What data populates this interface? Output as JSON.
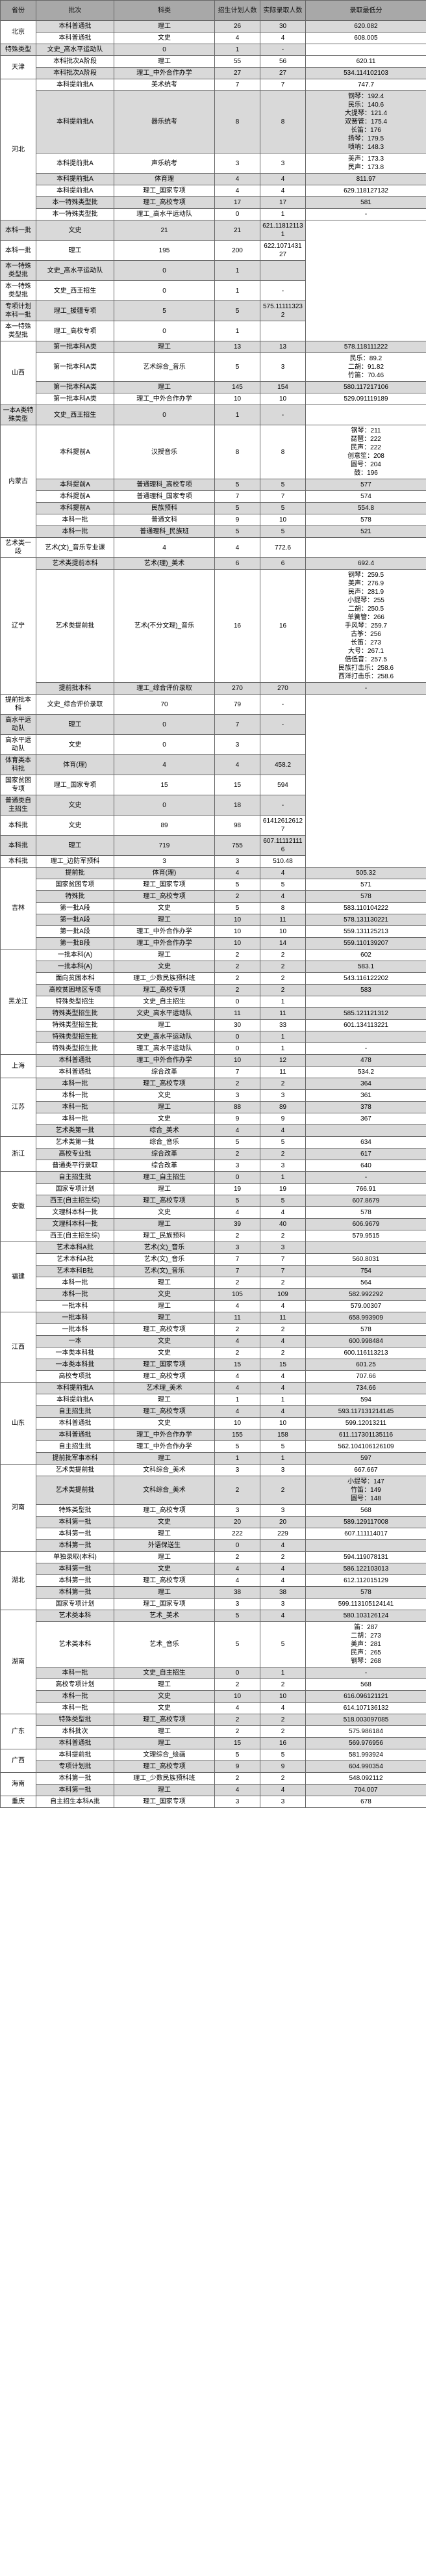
{
  "headers": [
    "省份",
    "批次",
    "科类",
    "招生计划人数",
    "实际录取人数",
    "录取最低分"
  ],
  "rows": [
    {
      "p": "北京",
      "pr": 2,
      "b": "本科普通批",
      "k": "理工",
      "a": "26",
      "c": "30",
      "s": "620.082"
    },
    {
      "b": "本科普通批",
      "k": "文史",
      "a": "4",
      "c": "4",
      "s": "608.005"
    },
    {
      "p": "",
      "b": "特殊类型",
      "k": "文史_高水平运动队",
      "a": "0",
      "c": "1",
      "s": "-"
    },
    {
      "p": "天津",
      "pr": 2,
      "b": "本科批次A阶段",
      "k": "理工",
      "a": "55",
      "c": "56",
      "s": "620.11"
    },
    {
      "b": "本科批次A阶段",
      "k": "理工_中外合作办学",
      "a": "27",
      "c": "27",
      "s": "534.114102103"
    },
    {
      "p": "河北",
      "pr": 7,
      "b": "本科提前批A",
      "k": "美术统考",
      "a": "7",
      "c": "7",
      "s": "747.7"
    },
    {
      "b": "本科提前批A",
      "k": "器乐统考",
      "a": "8",
      "c": "8",
      "s": "钢琴：192.4\n民乐：140.6\n大提琴：121.4\n双簧管：175.4\n长笛：176\n扬琴：179.5\n唢呐：148.3"
    },
    {
      "b": "本科提前批A",
      "k": "声乐统考",
      "a": "3",
      "c": "3",
      "s": "美声：173.3\n民声：173.8"
    },
    {
      "b": "本科提前批A",
      "k": "体育理",
      "a": "4",
      "c": "4",
      "s": "811.97"
    },
    {
      "b": "本科提前批A",
      "k": "理工_国家专项",
      "a": "4",
      "c": "4",
      "s": "629.118127132"
    },
    {
      "b": "本一特殊类型批",
      "k": "理工_高校专项",
      "a": "17",
      "c": "17",
      "s": "581"
    },
    {
      "b": "本一特殊类型批",
      "k": "理工_高水平运动队",
      "a": "0",
      "c": "1",
      "s": "-"
    },
    {
      "p": "",
      "b": "本科一批",
      "k": "文史",
      "a": "21",
      "c": "21",
      "s": "621.118121131"
    },
    {
      "p": "",
      "b": "本科一批",
      "k": "理工",
      "a": "195",
      "c": "200",
      "s": "622.107143127"
    },
    {
      "p": "",
      "b": "本一特殊类型批",
      "k": "文史_高水平运动队",
      "a": "0",
      "c": "1",
      "s": ""
    },
    {
      "p": "",
      "b": "本一特殊类型批",
      "k": "文史_西王招生",
      "a": "0",
      "c": "1",
      "s": "-"
    },
    {
      "p": "",
      "b": "专项计划本科一批",
      "k": "理工_援疆专项",
      "a": "5",
      "c": "5",
      "s": "575.111113232"
    },
    {
      "p": "",
      "b": "本一特殊类型批",
      "k": "理工_高校专项",
      "a": "0",
      "c": "1",
      "s": ""
    },
    {
      "p": "山西",
      "pr": 4,
      "b": "第一批本科A类",
      "k": "理工",
      "a": "13",
      "c": "13",
      "s": "578.118111222"
    },
    {
      "b": "第一批本科A类",
      "k": "艺术综合_音乐",
      "a": "5",
      "c": "3",
      "s": "民乐：89.2\n二胡：91.82\n竹笛：70.46"
    },
    {
      "b": "第一批本科A类",
      "k": "理工",
      "a": "145",
      "c": "154",
      "s": "580.117217106"
    },
    {
      "b": "第一批本科A类",
      "k": "理工_中外合作办学",
      "a": "10",
      "c": "10",
      "s": "529.091119189"
    },
    {
      "p": "",
      "b": "一本A类特殊类型",
      "k": "文史_西王招生",
      "a": "0",
      "c": "1",
      "s": "-"
    },
    {
      "p": "内蒙古",
      "pr": 6,
      "b": "本科提前A",
      "k": "汉授音乐",
      "a": "8",
      "c": "8",
      "s": "钢琴：211\n琵琶：222\n民声：222\n创意笙：208\n圆号：204\n鼓：196"
    },
    {
      "b": "本科提前A",
      "k": "普通理科_高校专项",
      "a": "5",
      "c": "5",
      "s": "577"
    },
    {
      "b": "本科提前A",
      "k": "普通理科_国家专项",
      "a": "7",
      "c": "7",
      "s": "574"
    },
    {
      "b": "本科提前A",
      "k": "民族预科",
      "a": "5",
      "c": "5",
      "s": "554.8"
    },
    {
      "b": "本科一批",
      "k": "普通文科",
      "a": "9",
      "c": "10",
      "s": "578"
    },
    {
      "b": "本科一批",
      "k": "普通理科_民族班",
      "a": "5",
      "c": "5",
      "s": "521"
    },
    {
      "p": "",
      "b": "艺术类一段",
      "k": "艺术(文)_音乐专业课",
      "a": "4",
      "c": "4",
      "s": "772.6"
    },
    {
      "p": "辽宁",
      "pr": 3,
      "b": "艺术类提前本科",
      "k": "艺术(理)_美术",
      "a": "6",
      "c": "6",
      "s": "692.4"
    },
    {
      "b": "艺术类提前批",
      "k": "艺术(不分文理)_音乐",
      "a": "16",
      "c": "16",
      "s": "钢琴：259.5\n美声：276.9\n民声：281.9\n小提琴：255\n二胡：250.5\n单簧管：266\n手风琴：259.7\n古筝：256\n长笛：273\n大号：267.1\n倍低音：257.5\n民族打击乐：258.6\n西洋打击乐：258.6"
    },
    {
      "b": "提前批本科",
      "k": "理工_综合评价录取",
      "a": "270",
      "c": "270",
      "s": "-"
    },
    {
      "p": "",
      "b": "提前批本科",
      "k": "文史_综合评价录取",
      "a": "70",
      "c": "79",
      "s": "-"
    },
    {
      "p": "",
      "b": "高水平运动队",
      "k": "理工",
      "a": "0",
      "c": "7",
      "s": "-"
    },
    {
      "p": "",
      "b": "高水平运动队",
      "k": "文史",
      "a": "0",
      "c": "3",
      "s": ""
    },
    {
      "p": "",
      "b": "体育类本科批",
      "k": "体育(理)",
      "a": "4",
      "c": "4",
      "s": "458.2"
    },
    {
      "p": "",
      "b": "国家贫困专项",
      "k": "理工_国家专项",
      "a": "15",
      "c": "15",
      "s": "594"
    },
    {
      "p": "",
      "b": "普通类自主招生",
      "k": "文史",
      "a": "0",
      "c": "18",
      "s": "-"
    },
    {
      "p": "",
      "b": "本科批",
      "k": "文史",
      "a": "89",
      "c": "98",
      "s": "614126126127"
    },
    {
      "p": "",
      "b": "本科批",
      "k": "理工",
      "a": "719",
      "c": "755",
      "s": "607.111121116"
    },
    {
      "p": "",
      "b": "本科批",
      "k": "理工_边防军预科",
      "a": "3",
      "c": "3",
      "s": "510.48"
    },
    {
      "p": "吉林",
      "pr": 7,
      "b": "提前批",
      "k": "体育(理)",
      "a": "4",
      "c": "4",
      "s": "505.32"
    },
    {
      "b": "国家贫困专项",
      "k": "理工_国家专项",
      "a": "5",
      "c": "5",
      "s": "571"
    },
    {
      "b": "特殊批",
      "k": "理工_高校专项",
      "a": "2",
      "c": "4",
      "s": "578"
    },
    {
      "b": "第一批A段",
      "k": "文史",
      "a": "5",
      "c": "8",
      "s": "583.110104222"
    },
    {
      "b": "第一批A段",
      "k": "理工",
      "a": "10",
      "c": "11",
      "s": "578.131130221"
    },
    {
      "b": "第一批A段",
      "k": "理工_中外合作办学",
      "a": "10",
      "c": "10",
      "s": "559.131125213"
    },
    {
      "b": "第一批B段",
      "k": "理工_中外合作办学",
      "a": "10",
      "c": "14",
      "s": "559.110139207"
    },
    {
      "p": "黑龙江",
      "pr": 9,
      "b": "一批本科(A)",
      "k": "理工",
      "a": "2",
      "c": "2",
      "s": "602"
    },
    {
      "b": "一批本科(A)",
      "k": "文史",
      "a": "2",
      "c": "2",
      "s": "583.1"
    },
    {
      "b": "面向贫困本科",
      "k": "理工_少数民族预科班",
      "a": "2",
      "c": "2",
      "s": "543.116122202"
    },
    {
      "b": "高校贫困地区专项",
      "k": "理工_高校专项",
      "a": "2",
      "c": "2",
      "s": "583"
    },
    {
      "b": "特殊类型招生",
      "k": "文史_自主招生",
      "a": "0",
      "c": "1",
      "s": ""
    },
    {
      "b": "特殊类型招生批",
      "k": "文史_高水平运动队",
      "a": "11",
      "c": "11",
      "s": "585.121121312"
    },
    {
      "b": "特殊类型招生批",
      "k": "理工",
      "a": "30",
      "c": "33",
      "s": "601.134113221"
    },
    {
      "b": "特殊类型招生批",
      "k": "文史_高水平运动队",
      "a": "0",
      "c": "1",
      "s": ""
    },
    {
      "b": "特殊类型招生批",
      "k": "理工_高水平运动队",
      "a": "0",
      "c": "1",
      "s": "-"
    },
    {
      "p": "上海",
      "pr": 2,
      "b": "本科普通批",
      "k": "理工_中外合作办学",
      "a": "10",
      "c": "12",
      "s": "478"
    },
    {
      "b": "本科普通批",
      "k": "综合改革",
      "a": "7",
      "c": "11",
      "s": "534.2"
    },
    {
      "p": "江苏",
      "pr": 5,
      "b": "本科一批",
      "k": "理工_高校专项",
      "a": "2",
      "c": "2",
      "s": "364"
    },
    {
      "b": "本科一批",
      "k": "文史",
      "a": "3",
      "c": "3",
      "s": "361"
    },
    {
      "b": "本科一批",
      "k": "理工",
      "a": "88",
      "c": "89",
      "s": "378"
    },
    {
      "b": "本科一批",
      "k": "文史",
      "a": "9",
      "c": "9",
      "s": "367"
    },
    {
      "b": "艺术类第一批",
      "k": "综合_美术",
      "a": "4",
      "c": "4",
      "s": ""
    },
    {
      "p": "浙江",
      "pr": 3,
      "b": "艺术类第一批",
      "k": "综合_音乐",
      "a": "5",
      "c": "5",
      "s": "634"
    },
    {
      "b": "高校专业批",
      "k": "综合改革",
      "a": "2",
      "c": "2",
      "s": "617"
    },
    {
      "b": "普通类平行录取",
      "k": "综合改革",
      "a": "3",
      "c": "3",
      "s": "640"
    },
    {
      "p": "安徽",
      "pr": 6,
      "b": "自主招生批",
      "k": "理工_自主招生",
      "a": "0",
      "c": "1",
      "s": "-"
    },
    {
      "b": "国家专项计划",
      "k": "理工",
      "a": "19",
      "c": "19",
      "s": "766.91"
    },
    {
      "b": "西王(自主招生综)",
      "k": "理工_高校专项",
      "a": "5",
      "c": "5",
      "s": "607.8679"
    },
    {
      "b": "文理科本科一批",
      "k": "文史",
      "a": "4",
      "c": "4",
      "s": "578"
    },
    {
      "b": "文理科本科一批",
      "k": "理工",
      "a": "39",
      "c": "40",
      "s": "606.9679"
    },
    {
      "b": "西王(自主招生综)",
      "k": "理工_民族预科",
      "a": "2",
      "c": "2",
      "s": "579.9515"
    },
    {
      "p": "福建",
      "pr": 6,
      "b": "艺术本科A批",
      "k": "艺术(文)_音乐",
      "a": "3",
      "c": "3",
      "s": ""
    },
    {
      "b": "艺术本科A批",
      "k": "艺术(文)_音乐",
      "a": "7",
      "c": "7",
      "s": "560.8031"
    },
    {
      "b": "艺术本科B批",
      "k": "艺术(文)_音乐",
      "a": "7",
      "c": "7",
      "s": "754"
    },
    {
      "b": "本科一批",
      "k": "理工",
      "a": "2",
      "c": "2",
      "s": "564"
    },
    {
      "b": "本科一批",
      "k": "文史",
      "a": "105",
      "c": "109",
      "s": "582.992292"
    },
    {
      "b": "一批本科",
      "k": "理工",
      "a": "4",
      "c": "4",
      "s": "579.00307"
    },
    {
      "p": "江西",
      "pr": 6,
      "b": "一批本科",
      "k": "理工",
      "a": "11",
      "c": "11",
      "s": "658.993909"
    },
    {
      "b": "一批本科",
      "k": "理工_高校专项",
      "a": "2",
      "c": "2",
      "s": "578"
    },
    {
      "b": "一本",
      "k": "文史",
      "a": "4",
      "c": "4",
      "s": "600.998484"
    },
    {
      "b": "一本类本科批",
      "k": "文史",
      "a": "2",
      "c": "2",
      "s": "600.116113213"
    },
    {
      "b": "一本类本科批",
      "k": "理工_国家专项",
      "a": "15",
      "c": "15",
      "s": "601.25"
    },
    {
      "b": "高校专项批",
      "k": "理工_高校专项",
      "a": "4",
      "c": "4",
      "s": "707.66"
    },
    {
      "p": "山东",
      "pr": 7,
      "b": "本科提前批A",
      "k": "艺术理_美术",
      "a": "4",
      "c": "4",
      "s": "734.66"
    },
    {
      "b": "本科提前批A",
      "k": "理工",
      "a": "1",
      "c": "1",
      "s": "594"
    },
    {
      "b": "自主招生批",
      "k": "理工_高校专项",
      "a": "4",
      "c": "4",
      "s": "593.117131214145"
    },
    {
      "b": "本科普通批",
      "k": "文史",
      "a": "10",
      "c": "10",
      "s": "599.12013211"
    },
    {
      "b": "本科普通批",
      "k": "理工_中外合作办学",
      "a": "155",
      "c": "158",
      "s": "611.117301135116"
    },
    {
      "b": "自主招生批",
      "k": "理工_中外合作办学",
      "a": "5",
      "c": "5",
      "s": "562.104106126109"
    },
    {
      "b": "提前批军事本科",
      "k": "理工",
      "a": "1",
      "c": "1",
      "s": "597"
    },
    {
      "p": "河南",
      "pr": 6,
      "b": "艺术类提前批",
      "k": "文科综合_美术",
      "a": "3",
      "c": "3",
      "s": "667.667"
    },
    {
      "b": "艺术类提前批",
      "k": "文科综合_美术",
      "a": "2",
      "c": "2",
      "s": "小提琴：147\n竹笛：149\n圆号：148"
    },
    {
      "b": "特殊类型批",
      "k": "理工_高校专项",
      "a": "3",
      "c": "3",
      "s": "568"
    },
    {
      "b": "本科第一批",
      "k": "文史",
      "a": "20",
      "c": "20",
      "s": "589.129117008"
    },
    {
      "b": "本科第一批",
      "k": "理工",
      "a": "222",
      "c": "229",
      "s": "607.111114017"
    },
    {
      "b": "本科第一批",
      "k": "外语保送生",
      "a": "0",
      "c": "4",
      "s": ""
    },
    {
      "p": "湖北",
      "pr": 5,
      "b": "单独录取(本科)",
      "k": "理工",
      "a": "2",
      "c": "2",
      "s": "594.119078131"
    },
    {
      "b": "本科第一批",
      "k": "文史",
      "a": "4",
      "c": "4",
      "s": "586.122103013"
    },
    {
      "b": "本科第一批",
      "k": "理工_高校专项",
      "a": "4",
      "c": "4",
      "s": "612.112015129"
    },
    {
      "b": "本科第一批",
      "k": "理工",
      "a": "38",
      "c": "38",
      "s": "578"
    },
    {
      "b": "国家专项计划",
      "k": "理工_国家专项",
      "a": "3",
      "c": "3",
      "s": "599.113105124141"
    },
    {
      "p": "湖南",
      "pr": 6,
      "b": "艺术类本科",
      "k": "艺术_美术",
      "a": "5",
      "c": "4",
      "s": "580.103126124"
    },
    {
      "b": "艺术类本科",
      "k": "艺术_音乐",
      "a": "5",
      "c": "5",
      "s": "笛：287\n二胡：273\n美声：281\n民声：265\n钢琴：268"
    },
    {
      "b": "本科一批",
      "k": "文史_自主招生",
      "a": "0",
      "c": "1",
      "s": "-"
    },
    {
      "b": "高校专项计划",
      "k": "理工",
      "a": "2",
      "c": "2",
      "s": "568"
    },
    {
      "b": "本科一批",
      "k": "文史",
      "a": "10",
      "c": "10",
      "s": "616.096121121"
    },
    {
      "b": "本科一批",
      "k": "文史",
      "a": "4",
      "c": "4",
      "s": "614.107136132"
    },
    {
      "p": "广东",
      "pr": 3,
      "b": "特殊类型批",
      "k": "理工_高校专项",
      "a": "2",
      "c": "2",
      "s": "518.003097085"
    },
    {
      "b": "本科批次",
      "k": "理工",
      "a": "2",
      "c": "2",
      "s": "575.986184"
    },
    {
      "b": "本科普通批",
      "k": "理工",
      "a": "15",
      "c": "16",
      "s": "569.976956"
    },
    {
      "p": "广西",
      "pr": 2,
      "b": "本科提前批",
      "k": "文理综合_绘画",
      "a": "5",
      "c": "5",
      "s": "581.993924"
    },
    {
      "b": "专项计划批",
      "k": "理工_高校专项",
      "a": "9",
      "c": "9",
      "s": "604.990354"
    },
    {
      "p": "海南",
      "pr": 2,
      "b": "本科第一批",
      "k": "理工_少数民族预科班",
      "a": "2",
      "c": "2",
      "s": "548.092112"
    },
    {
      "b": "本科第一批",
      "k": "理工",
      "a": "4",
      "c": "4",
      "s": "704.007"
    },
    {
      "p": "重庆",
      "pr": 1,
      "b": "自主招生本科A批",
      "k": "理工_国家专项",
      "a": "3",
      "c": "3",
      "s": "678"
    }
  ]
}
